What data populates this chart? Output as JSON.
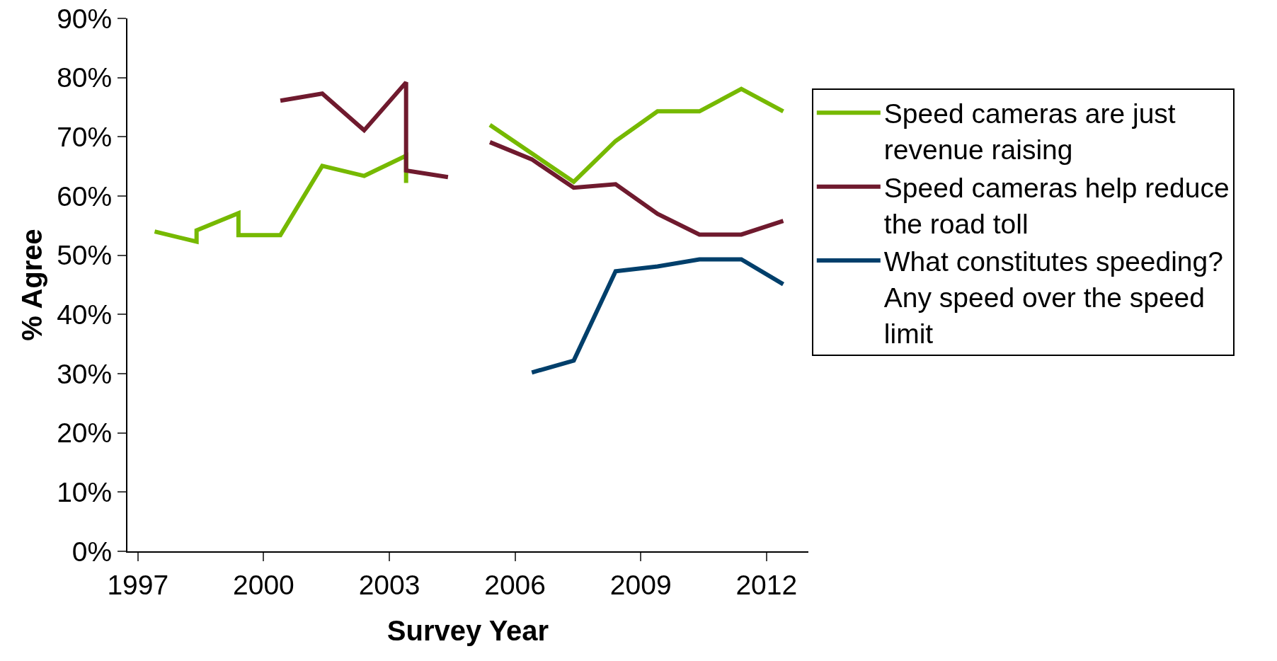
{
  "chart_data": {
    "type": "line",
    "xlabel": "Survey Year",
    "ylabel": "% Agree",
    "series": [
      {
        "name": "Speed cameras are just revenue raising",
        "color": "#76b900",
        "x": [
          1997.4,
          1998.4,
          1998.4,
          1999.4,
          1999.4,
          2000.4,
          2001.4,
          2002.4,
          2003.4,
          2003.4,
          2004.4,
          2005.4,
          2006.4,
          2007.4,
          2008.4,
          2009.4,
          2010.4,
          2011.4,
          2012.4
        ],
        "values": [
          0.54,
          0.523,
          0.542,
          0.571,
          0.534,
          0.534,
          0.651,
          0.634,
          0.668,
          0.622,
          null,
          0.72,
          0.672,
          0.624,
          0.693,
          0.743,
          0.743,
          0.781,
          0.743
        ]
      },
      {
        "name": "Speed cameras help reduce the road toll",
        "color": "#6f1a2e",
        "x": [
          2000.4,
          2001.4,
          2002.4,
          2003.4,
          2003.4,
          2004.4,
          2004.9,
          2005.4,
          2006.4,
          2007.4,
          2008.4,
          2009.4,
          2010.4,
          2011.4,
          2012.4
        ],
        "values": [
          0.761,
          0.773,
          0.711,
          0.792,
          0.643,
          0.632,
          null,
          0.691,
          0.662,
          0.614,
          0.62,
          0.57,
          0.535,
          0.535,
          0.558
        ]
      },
      {
        "name": "What constitutes speeding? Any speed over the speed limit",
        "color": "#003f6b",
        "x": [
          2006.4,
          2007.4,
          2008.4,
          2009.4,
          2010.4,
          2011.4,
          2012.4
        ],
        "values": [
          0.302,
          0.322,
          0.473,
          0.481,
          0.493,
          0.493,
          0.451
        ]
      }
    ],
    "xlim": [
      1996.75,
      2013.0
    ],
    "xticks": [
      1997,
      2000,
      2003,
      2006,
      2009,
      2012
    ],
    "ylim": [
      0,
      0.9
    ],
    "yticks": [
      {
        "value": 0,
        "label": "0%"
      },
      {
        "value": 0.1,
        "label": "10%"
      },
      {
        "value": 0.2,
        "label": "20%"
      },
      {
        "value": 0.3,
        "label": "30%"
      },
      {
        "value": 0.4,
        "label": "40%"
      },
      {
        "value": 0.5,
        "label": "50%"
      },
      {
        "value": 0.6,
        "label": "60%"
      },
      {
        "value": 0.7,
        "label": "70%"
      },
      {
        "value": 0.8,
        "label": "80%"
      },
      {
        "value": 0.9,
        "label": "90%"
      }
    ],
    "legend": "right",
    "marker": "none",
    "line_style": "solid"
  }
}
